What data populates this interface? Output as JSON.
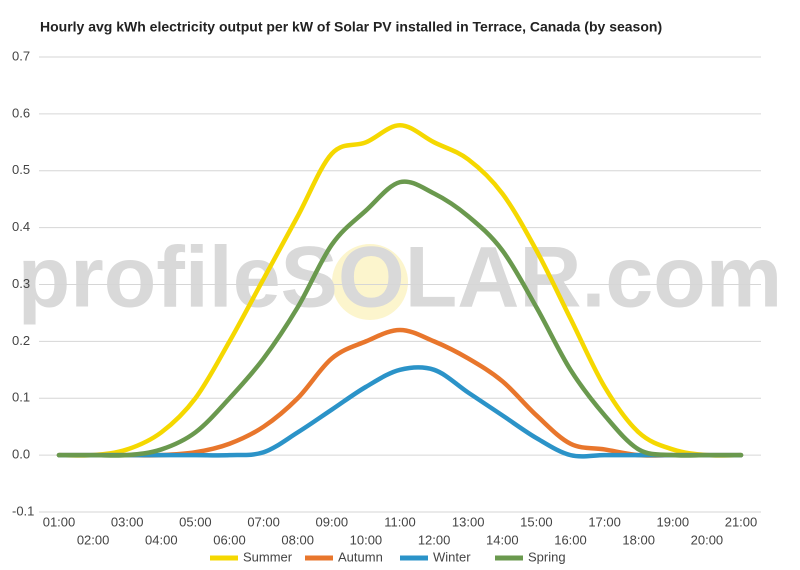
{
  "chart_data": {
    "type": "line",
    "title": "Hourly avg kWh electricity output per kW of Solar PV installed in Terrace, Canada (by season)",
    "watermark": "profileSOLAR.com",
    "categories": [
      "01:00",
      "02:00",
      "03:00",
      "04:00",
      "05:00",
      "06:00",
      "07:00",
      "08:00",
      "09:00",
      "10:00",
      "11:00",
      "12:00",
      "13:00",
      "14:00",
      "15:00",
      "16:00",
      "17:00",
      "18:00",
      "19:00",
      "20:00",
      "21:00"
    ],
    "series": [
      {
        "name": "Summer",
        "color": "#f5d800",
        "values": [
          0,
          0,
          0.01,
          0.04,
          0.1,
          0.2,
          0.31,
          0.42,
          0.53,
          0.55,
          0.58,
          0.55,
          0.52,
          0.46,
          0.36,
          0.24,
          0.12,
          0.04,
          0.01,
          0,
          0
        ]
      },
      {
        "name": "Autumn",
        "color": "#e8762c",
        "values": [
          0,
          0,
          0,
          0,
          0.005,
          0.02,
          0.05,
          0.1,
          0.17,
          0.2,
          0.22,
          0.2,
          0.17,
          0.13,
          0.07,
          0.02,
          0.01,
          0,
          0,
          0,
          0
        ]
      },
      {
        "name": "Winter",
        "color": "#2b93c8",
        "values": [
          0,
          0,
          0,
          0,
          0,
          0,
          0.005,
          0.04,
          0.08,
          0.12,
          0.15,
          0.15,
          0.11,
          0.07,
          0.03,
          0,
          0,
          0,
          0,
          0,
          0
        ]
      },
      {
        "name": "Spring",
        "color": "#6a994e",
        "values": [
          0,
          0,
          0,
          0.01,
          0.04,
          0.1,
          0.17,
          0.26,
          0.37,
          0.43,
          0.48,
          0.46,
          0.42,
          0.36,
          0.26,
          0.15,
          0.07,
          0.01,
          0,
          0,
          0
        ]
      }
    ],
    "ylim": [
      -0.1,
      0.7
    ],
    "yticks": [
      -0.1,
      {
        "value": 0,
        "label": "0.0"
      },
      0.1,
      0.2,
      0.3,
      0.4,
      0.5,
      0.6,
      0.7
    ],
    "grid": true,
    "legend": "bottom"
  }
}
